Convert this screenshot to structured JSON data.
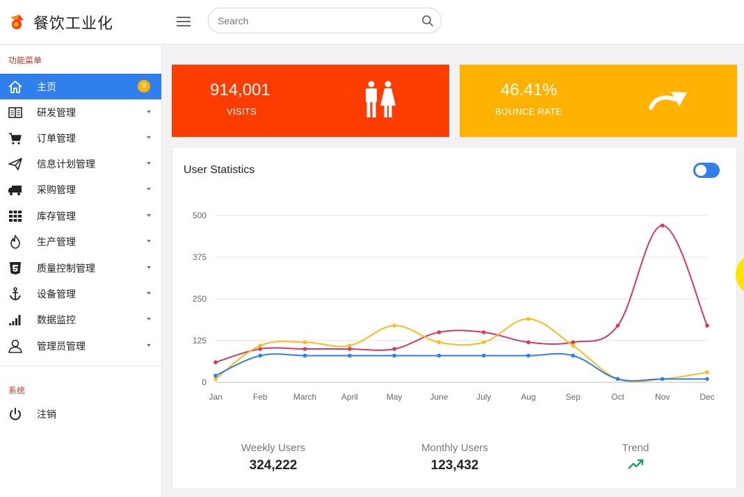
{
  "app": {
    "title": "餐饮工业化",
    "logo_icon": "flame-logo-icon"
  },
  "search": {
    "placeholder": "Search",
    "value": ""
  },
  "sidebar": {
    "sections": [
      {
        "label": "功能菜单",
        "items": [
          {
            "label": "主页",
            "icon": "home-icon",
            "active": true,
            "badge": "8"
          },
          {
            "label": "研发管理",
            "icon": "book-icon"
          },
          {
            "label": "订单管理",
            "icon": "cart-icon"
          },
          {
            "label": "信息计划管理",
            "icon": "send-icon"
          },
          {
            "label": "采购管理",
            "icon": "truck-icon"
          },
          {
            "label": "库存管理",
            "icon": "grid-icon"
          },
          {
            "label": "生产管理",
            "icon": "fire-icon"
          },
          {
            "label": "质量控制管理",
            "icon": "html5-icon"
          },
          {
            "label": "设备管理",
            "icon": "anchor-icon"
          },
          {
            "label": "数据监控",
            "icon": "signal-icon"
          },
          {
            "label": "管理员管理",
            "icon": "user-icon"
          }
        ]
      },
      {
        "label": "系统",
        "items": [
          {
            "label": "注销",
            "icon": "power-icon"
          }
        ]
      }
    ]
  },
  "cards": [
    {
      "value": "914,001",
      "caption": "VISITS",
      "icon": "people-icon",
      "color": "#ff3d00"
    },
    {
      "value": "46.41%",
      "caption": "BOUNCE RATE",
      "icon": "redo-arrow-icon",
      "color": "#ffb300"
    }
  ],
  "stats": {
    "title": "User Statistics",
    "toggle_on": true,
    "summary": [
      {
        "label": "Weekly Users",
        "value": "324,222"
      },
      {
        "label": "Monthly Users",
        "value": "123,432"
      },
      {
        "label": "Trend",
        "icon": "trending-up-icon"
      }
    ]
  },
  "chart_data": {
    "type": "line",
    "x": [
      "Jan",
      "Feb",
      "March",
      "April",
      "May",
      "June",
      "July",
      "Aug",
      "Sep",
      "Oct",
      "Nov",
      "Dec"
    ],
    "yticks": [
      0,
      125,
      250,
      375,
      500
    ],
    "ylim": [
      0,
      500
    ],
    "grid": true,
    "series": [
      {
        "color": "#d63864",
        "values": [
          60,
          100,
          100,
          100,
          100,
          150,
          150,
          120,
          120,
          170,
          470,
          170
        ]
      },
      {
        "color": "#fbbc1c",
        "values": [
          10,
          110,
          120,
          110,
          170,
          120,
          120,
          190,
          110,
          10,
          10,
          30
        ]
      },
      {
        "color": "#2f7cf0",
        "values": [
          20,
          80,
          80,
          80,
          80,
          80,
          80,
          80,
          80,
          10,
          10,
          10
        ]
      }
    ]
  }
}
